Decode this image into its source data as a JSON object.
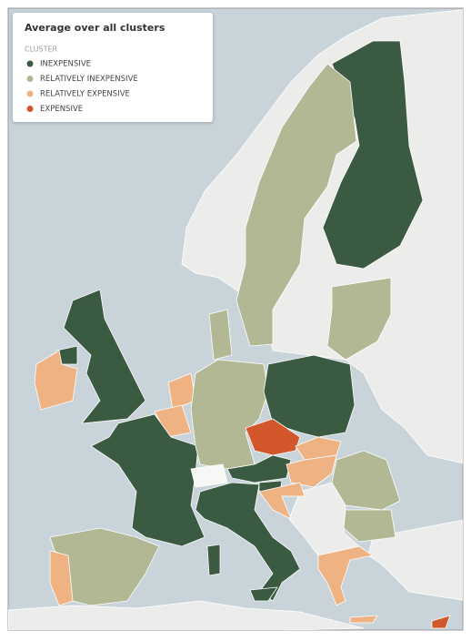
{
  "legend": {
    "title": "Average over all clusters",
    "heading": "CLUSTER",
    "items": [
      {
        "label": "INEXPENSIVE",
        "color": "#3a5a41"
      },
      {
        "label": "RELATIVELY INEXPENSIVE",
        "color": "#b2b893"
      },
      {
        "label": "RELATIVELY EXPENSIVE",
        "color": "#efb283"
      },
      {
        "label": "EXPENSIVE",
        "color": "#d2572b"
      }
    ]
  }
}
